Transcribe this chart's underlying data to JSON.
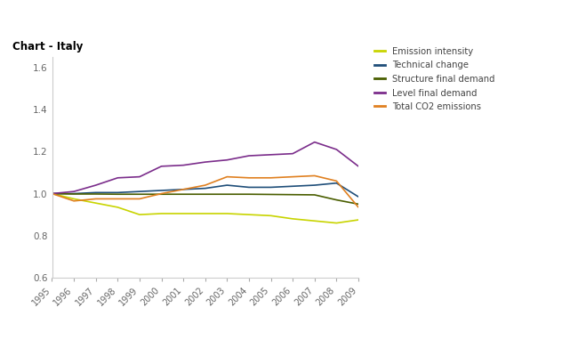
{
  "title": "Chart - Italy",
  "years": [
    1995,
    1996,
    1997,
    1998,
    1999,
    2000,
    2001,
    2002,
    2003,
    2004,
    2005,
    2006,
    2007,
    2008,
    2009
  ],
  "series": {
    "Emission intensity": {
      "color": "#c8d400",
      "values": [
        1.0,
        0.975,
        0.955,
        0.935,
        0.9,
        0.905,
        0.905,
        0.905,
        0.905,
        0.9,
        0.895,
        0.88,
        0.87,
        0.86,
        0.875
      ]
    },
    "Technical change": {
      "color": "#1f4e79",
      "values": [
        1.0,
        1.0,
        1.005,
        1.005,
        1.01,
        1.015,
        1.02,
        1.025,
        1.04,
        1.03,
        1.03,
        1.035,
        1.04,
        1.05,
        0.985
      ]
    },
    "Structure final demand": {
      "color": "#4a5e00",
      "values": [
        1.0,
        0.998,
        0.998,
        0.997,
        0.997,
        0.997,
        0.997,
        0.997,
        0.997,
        0.997,
        0.996,
        0.995,
        0.994,
        0.97,
        0.95
      ]
    },
    "Level final demand": {
      "color": "#7b2d8b",
      "values": [
        1.0,
        1.01,
        1.04,
        1.075,
        1.08,
        1.13,
        1.135,
        1.15,
        1.16,
        1.18,
        1.185,
        1.19,
        1.245,
        1.21,
        1.13
      ]
    },
    "Total CO2 emissions": {
      "color": "#e08020",
      "values": [
        1.0,
        0.965,
        0.975,
        0.975,
        0.975,
        1.0,
        1.02,
        1.04,
        1.08,
        1.075,
        1.075,
        1.08,
        1.085,
        1.06,
        0.935
      ]
    }
  },
  "ylim": [
    0.6,
    1.65
  ],
  "yticks": [
    0.6,
    0.8,
    1.0,
    1.2,
    1.4,
    1.6
  ],
  "bg_color": "#ffffff",
  "plot_bg_color": "#ffffff",
  "legend_order": [
    "Emission intensity",
    "Technical change",
    "Structure final demand",
    "Level final demand",
    "Total CO2 emissions"
  ],
  "linewidth": 1.2
}
